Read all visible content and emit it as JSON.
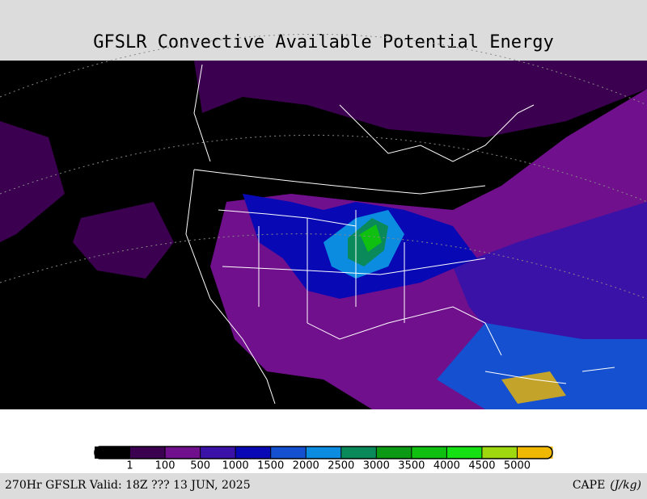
{
  "header": {
    "title": "GFSLR Convective Available Potential Energy"
  },
  "colorbar": {
    "colors": [
      "#000000",
      "#3c0050",
      "#70108c",
      "#3a12a8",
      "#0808b4",
      "#1450d0",
      "#0c8ce0",
      "#0a8a5a",
      "#0c9a14",
      "#10c010",
      "#14e014",
      "#a0d810",
      "#f0b800"
    ],
    "labels": [
      "1",
      "100",
      "500",
      "1000",
      "1500",
      "2000",
      "2500",
      "3000",
      "3500",
      "4000",
      "4500",
      "5000"
    ]
  },
  "footer": {
    "left": "270Hr GFSLR Valid: 18Z ??? 13 JUN, 2025",
    "right": "CAPE",
    "units": "(J/kg)"
  }
}
